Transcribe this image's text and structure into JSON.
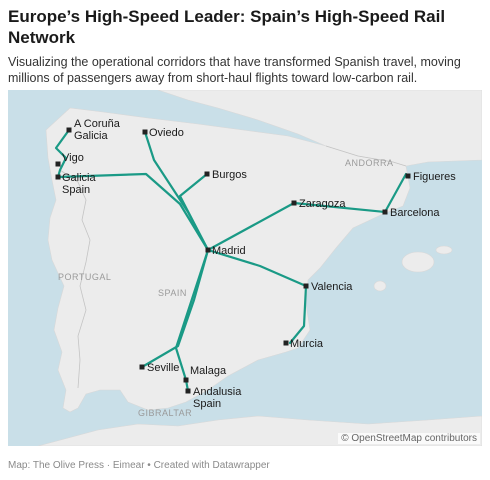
{
  "title": "Europe’s High-Speed Leader: Spain’s High-Speed Rail Network",
  "subtitle": "Visualizing the operational corridors that have transformed Spanish travel, moving millions of passengers away from short-haul flights toward low-carbon rail.",
  "footer": "Map: The Olive Press · Eimear • Created with Datawrapper",
  "attribution": "© OpenStreetMap contributors",
  "colors": {
    "sea": "#c9dfe8",
    "land": "#ececec",
    "route": "#1a9a86",
    "marker": "#222222"
  },
  "place_labels": {
    "andorra": "ANDORRA",
    "portugal": "PORTUGAL",
    "spain": "SPAIN",
    "gibraltar": "GIBRALTAR"
  },
  "cities": {
    "a_coruna": "A Coruña\nGalicia",
    "oviedo": "Oviedo",
    "vigo": "Vigo",
    "galicia": "Galicia\nSpain",
    "burgos": "Burgos",
    "zaragoza": "Zaragoza",
    "figueres": "Figueres",
    "barcelona": "Barcelona",
    "madrid": "Madrid",
    "valencia": "Valencia",
    "murcia": "Murcia",
    "seville": "Seville",
    "malaga": "Malaga",
    "andalusia": "Andalusia\nSpain"
  }
}
